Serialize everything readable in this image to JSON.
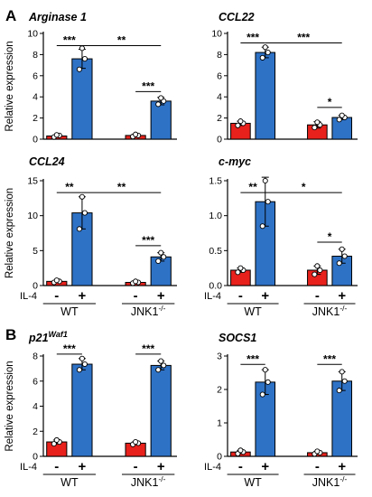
{
  "figure": {
    "panels": [
      "A",
      "B"
    ],
    "treatment_label": "IL-4",
    "treatment_signs": [
      "-",
      "+"
    ],
    "groups": [
      "WT",
      "JNK1"
    ],
    "group_superscript": "-/-"
  },
  "colors": {
    "minus": "#e8211c",
    "plus": "#2e72c6",
    "point": "#ffffff",
    "line": "#000000"
  },
  "chart_data": [
    {
      "type": "bar",
      "title": "Arginase 1",
      "title_sup": "",
      "ylabel": "Relative expression",
      "ylim": [
        0,
        10
      ],
      "yticks": [
        0,
        2,
        4,
        6,
        8,
        10
      ],
      "categories": [
        "WT -",
        "WT +",
        "JNK1-/- -",
        "JNK1-/- +"
      ],
      "values": [
        0.3,
        7.6,
        0.35,
        3.6
      ],
      "errors": [
        0.1,
        0.9,
        0.1,
        0.35
      ],
      "points": [
        [
          0.2,
          0.35,
          0.4
        ],
        [
          6.6,
          7.6,
          8.6
        ],
        [
          0.25,
          0.35,
          0.45
        ],
        [
          3.3,
          3.6,
          3.9
        ]
      ],
      "significance": [
        {
          "from": 0,
          "to": 1,
          "label": "***",
          "level": 8.85
        },
        {
          "from": 1,
          "to": 3,
          "label": "**",
          "level": 8.85
        },
        {
          "from": 2,
          "to": 3,
          "label": "***",
          "level": 4.5
        }
      ]
    },
    {
      "type": "bar",
      "title": "CCL22",
      "title_sup": "",
      "ylabel": "",
      "ylim": [
        0,
        10
      ],
      "yticks": [
        0,
        2,
        4,
        6,
        8,
        10
      ],
      "categories": [
        "WT -",
        "WT +",
        "JNK1-/- -",
        "JNK1-/- +"
      ],
      "values": [
        1.5,
        8.2,
        1.35,
        2.05
      ],
      "errors": [
        0.2,
        0.5,
        0.3,
        0.2
      ],
      "points": [
        [
          1.3,
          1.5,
          1.7
        ],
        [
          7.7,
          8.2,
          8.7
        ],
        [
          1.1,
          1.35,
          1.6
        ],
        [
          1.85,
          2.05,
          2.25
        ]
      ],
      "significance": [
        {
          "from": 0,
          "to": 1,
          "label": "***",
          "level": 9.1
        },
        {
          "from": 1,
          "to": 3,
          "label": "***",
          "level": 9.1
        },
        {
          "from": 2,
          "to": 3,
          "label": "*",
          "level": 3.0
        }
      ]
    },
    {
      "type": "bar",
      "title": "CCL24",
      "title_sup": "",
      "ylabel": "Relative expression",
      "ylim": [
        0,
        15
      ],
      "yticks": [
        0,
        5,
        10,
        15
      ],
      "categories": [
        "WT -",
        "WT +",
        "JNK1-/- -",
        "JNK1-/- +"
      ],
      "values": [
        0.6,
        10.4,
        0.45,
        4.1
      ],
      "errors": [
        0.15,
        2.3,
        0.15,
        0.6
      ],
      "points": [
        [
          0.45,
          0.6,
          0.75
        ],
        [
          8.1,
          10.4,
          12.7
        ],
        [
          0.35,
          0.45,
          0.6
        ],
        [
          3.5,
          4.1,
          4.7
        ]
      ],
      "significance": [
        {
          "from": 0,
          "to": 1,
          "label": "**",
          "level": 13.3
        },
        {
          "from": 1,
          "to": 3,
          "label": "**",
          "level": 13.3
        },
        {
          "from": 2,
          "to": 3,
          "label": "***",
          "level": 5.7
        }
      ]
    },
    {
      "type": "bar",
      "title": "c-myc",
      "title_sup": "",
      "ylabel": "",
      "ylim": [
        0,
        1.5
      ],
      "yticks": [
        0.0,
        0.5,
        1.0,
        1.5
      ],
      "ytick_labels": [
        "0.0",
        "0.5",
        "1.0",
        "1.5"
      ],
      "categories": [
        "WT -",
        "WT +",
        "JNK1-/- -",
        "JNK1-/- +"
      ],
      "values": [
        0.22,
        1.2,
        0.22,
        0.42
      ],
      "errors": [
        0.03,
        0.35,
        0.06,
        0.1
      ],
      "points": [
        [
          0.19,
          0.22,
          0.25
        ],
        [
          0.85,
          1.2,
          1.5
        ],
        [
          0.16,
          0.22,
          0.28
        ],
        [
          0.32,
          0.42,
          0.52
        ]
      ],
      "significance": [
        {
          "from": 0,
          "to": 1,
          "label": "**",
          "level": 1.33
        },
        {
          "from": 1,
          "to": 3,
          "label": "*",
          "level": 1.33
        },
        {
          "from": 2,
          "to": 3,
          "label": "*",
          "level": 0.62
        }
      ]
    },
    {
      "type": "bar",
      "title": "p21",
      "title_sup": "Waf1",
      "ylabel": "Relative expression",
      "ylim": [
        0,
        8
      ],
      "yticks": [
        0,
        2,
        4,
        6,
        8
      ],
      "categories": [
        "WT -",
        "WT +",
        "JNK1-/- -",
        "JNK1-/- +"
      ],
      "values": [
        1.15,
        7.35,
        1.05,
        7.25
      ],
      "errors": [
        0.15,
        0.45,
        0.1,
        0.35
      ],
      "points": [
        [
          1.0,
          1.15,
          1.3
        ],
        [
          6.9,
          7.35,
          7.8
        ],
        [
          0.95,
          1.05,
          1.15
        ],
        [
          6.9,
          7.25,
          7.6
        ]
      ],
      "significance": [
        {
          "from": 0,
          "to": 1,
          "label": "***",
          "level": 8.15
        },
        {
          "from": 2,
          "to": 3,
          "label": "***",
          "level": 8.15
        }
      ]
    },
    {
      "type": "bar",
      "title": "SOCS1",
      "title_sup": "",
      "ylabel": "",
      "ylim": [
        0,
        3
      ],
      "yticks": [
        0,
        1,
        2,
        3
      ],
      "categories": [
        "WT -",
        "WT +",
        "JNK1-/- -",
        "JNK1-/- +"
      ],
      "values": [
        0.13,
        2.22,
        0.11,
        2.25
      ],
      "errors": [
        0.05,
        0.37,
        0.04,
        0.28
      ],
      "points": [
        [
          0.08,
          0.13,
          0.18
        ],
        [
          1.85,
          2.22,
          2.59
        ],
        [
          0.07,
          0.11,
          0.15
        ],
        [
          1.97,
          2.25,
          2.53
        ]
      ],
      "significance": [
        {
          "from": 0,
          "to": 1,
          "label": "***",
          "level": 2.75
        },
        {
          "from": 2,
          "to": 3,
          "label": "***",
          "level": 2.75
        }
      ]
    }
  ]
}
